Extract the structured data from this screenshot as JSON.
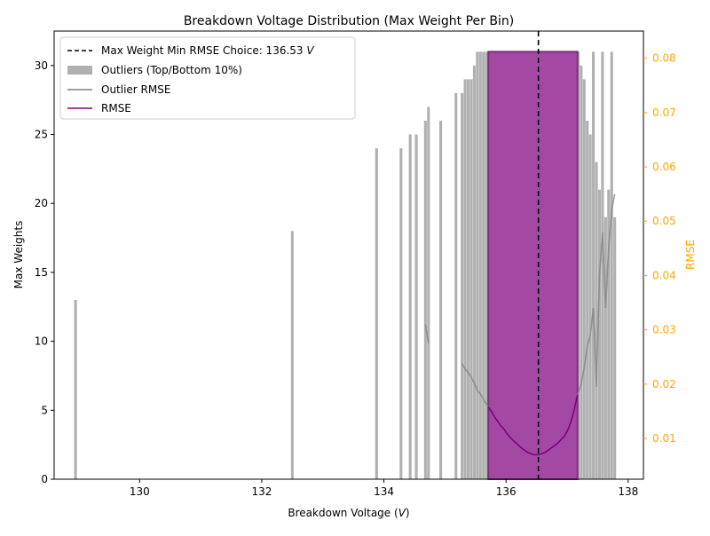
{
  "chart_data": {
    "type": "bar",
    "title": "Breakdown Voltage Distribution (Max Weight Per Bin)",
    "xlabel": "Breakdown Voltage",
    "xlabel_unit": "V",
    "ylabel": "Max Weights",
    "ylabel_right": "RMSE",
    "xlim": [
      128.6,
      138.25
    ],
    "ylim": [
      0,
      32.5
    ],
    "ylim_right": [
      0.0025,
      0.085
    ],
    "x_ticks": [
      130,
      132,
      134,
      136,
      138
    ],
    "y_ticks": [
      0,
      5,
      10,
      15,
      20,
      25,
      30
    ],
    "y_ticks_right": [
      0.01,
      0.02,
      0.03,
      0.04,
      0.05,
      0.06,
      0.07,
      0.08
    ],
    "x_tick_labels": [
      "130",
      "132",
      "134",
      "136",
      "138"
    ],
    "y_tick_labels": [
      "0",
      "5",
      "10",
      "15",
      "20",
      "25",
      "30"
    ],
    "y_tick_labels_right": [
      "0.01",
      "0.02",
      "0.03",
      "0.04",
      "0.05",
      "0.06",
      "0.07",
      "0.08"
    ],
    "legend": {
      "position": "top-left",
      "entries": [
        {
          "label": "Max Weight Min RMSE Choice: 136.53 ",
          "unit": "V",
          "style": "dashed-line",
          "color": "#000000"
        },
        {
          "label": "Outliers (Top/Bottom 10%)",
          "style": "patch",
          "color": "#b0b0b0"
        },
        {
          "label": "Outlier RMSE",
          "style": "line",
          "color": "#808080"
        },
        {
          "label": "RMSE",
          "style": "line",
          "color": "#800080"
        }
      ]
    },
    "chosen_voltage": 136.53,
    "outlier_bars": {
      "color": "#b0b0b0",
      "width": 0.045,
      "x": [
        128.95,
        132.5,
        133.88,
        134.28,
        134.43,
        134.53,
        134.68,
        134.73,
        134.93,
        135.18,
        135.28,
        135.33,
        135.38,
        135.43,
        135.48,
        135.53,
        135.58,
        135.63,
        135.68,
        137.18,
        137.23,
        137.28,
        137.33,
        137.38,
        137.43,
        137.48,
        137.53,
        137.58,
        137.63,
        137.68,
        137.73,
        137.78
      ],
      "values": [
        13,
        18,
        24,
        24,
        25,
        25,
        26,
        27,
        26,
        28,
        28,
        29,
        29,
        29,
        30,
        31,
        31,
        31,
        31,
        31,
        30,
        29,
        26,
        25,
        31,
        23,
        21,
        31,
        19,
        21,
        31,
        19
      ]
    },
    "main_bars": {
      "color": "#a349a4",
      "x_start": 135.71,
      "x_end": 137.17,
      "value": 31
    },
    "outlier_rmse": {
      "color": "#808080",
      "segments": [
        {
          "x": [
            134.68,
            134.73
          ],
          "y": [
            0.031,
            0.0275
          ]
        },
        {
          "x": [
            135.28,
            135.33,
            135.38,
            135.43,
            135.48,
            135.53,
            135.58,
            135.63,
            135.68,
            135.71
          ],
          "y": [
            0.0238,
            0.0228,
            0.0221,
            0.0213,
            0.0202,
            0.0188,
            0.0182,
            0.0172,
            0.0163,
            0.0158
          ]
        },
        {
          "x": [
            137.17,
            137.23,
            137.28,
            137.33,
            137.38,
            137.43,
            137.48,
            137.53,
            137.58,
            137.63,
            137.68,
            137.73,
            137.78
          ],
          "y": [
            0.018,
            0.02,
            0.023,
            0.027,
            0.029,
            0.034,
            0.0195,
            0.04,
            0.048,
            0.034,
            0.045,
            0.052,
            0.055
          ]
        }
      ]
    },
    "rmse": {
      "color": "#800080",
      "x": [
        135.71,
        135.76,
        135.81,
        135.86,
        135.91,
        135.96,
        136.01,
        136.06,
        136.11,
        136.16,
        136.21,
        136.26,
        136.31,
        136.36,
        136.41,
        136.46,
        136.51,
        136.56,
        136.61,
        136.66,
        136.71,
        136.76,
        136.81,
        136.86,
        136.91,
        136.96,
        137.01,
        137.06,
        137.11,
        137.17
      ],
      "y": [
        0.0158,
        0.015,
        0.014,
        0.0132,
        0.0124,
        0.0118,
        0.011,
        0.0103,
        0.0097,
        0.0092,
        0.0087,
        0.0082,
        0.0078,
        0.0074,
        0.0072,
        0.007,
        0.007,
        0.0071,
        0.0073,
        0.0076,
        0.008,
        0.0084,
        0.0088,
        0.0093,
        0.0099,
        0.0105,
        0.0115,
        0.013,
        0.015,
        0.018
      ]
    }
  }
}
